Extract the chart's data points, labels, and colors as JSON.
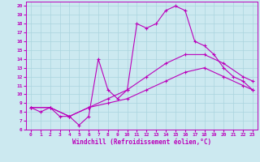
{
  "xlabel": "Windchill (Refroidissement éolien,°C)",
  "xlim": [
    -0.5,
    23.5
  ],
  "ylim": [
    6,
    20.5
  ],
  "xticks": [
    0,
    1,
    2,
    3,
    4,
    5,
    6,
    7,
    8,
    9,
    10,
    11,
    12,
    13,
    14,
    15,
    16,
    17,
    18,
    19,
    20,
    21,
    22,
    23
  ],
  "yticks": [
    6,
    7,
    8,
    9,
    10,
    11,
    12,
    13,
    14,
    15,
    16,
    17,
    18,
    19,
    20
  ],
  "background_color": "#cce9f0",
  "grid_color": "#aad4de",
  "line_color": "#bb00bb",
  "line1_x": [
    0,
    1,
    2,
    3,
    4,
    5,
    6,
    7,
    8,
    9,
    10,
    11,
    12,
    13,
    14,
    15,
    16,
    17,
    18,
    19,
    20,
    21,
    22,
    23
  ],
  "line1_y": [
    8.5,
    8.0,
    8.5,
    7.5,
    7.5,
    6.5,
    7.5,
    14.0,
    10.5,
    9.5,
    10.5,
    18.0,
    17.5,
    18.0,
    19.5,
    20.0,
    19.5,
    16.0,
    15.5,
    14.5,
    13.0,
    12.0,
    11.5,
    10.5
  ],
  "line2_x": [
    0,
    2,
    4,
    6,
    8,
    10,
    12,
    14,
    16,
    18,
    20,
    22,
    23
  ],
  "line2_y": [
    8.5,
    8.5,
    7.5,
    8.5,
    9.5,
    10.5,
    12.0,
    13.5,
    14.5,
    14.5,
    13.5,
    12.0,
    11.5
  ],
  "line3_x": [
    0,
    2,
    4,
    6,
    8,
    10,
    12,
    14,
    16,
    18,
    20,
    22,
    23
  ],
  "line3_y": [
    8.5,
    8.5,
    7.5,
    8.5,
    9.0,
    9.5,
    10.5,
    11.5,
    12.5,
    13.0,
    12.0,
    11.0,
    10.5
  ]
}
